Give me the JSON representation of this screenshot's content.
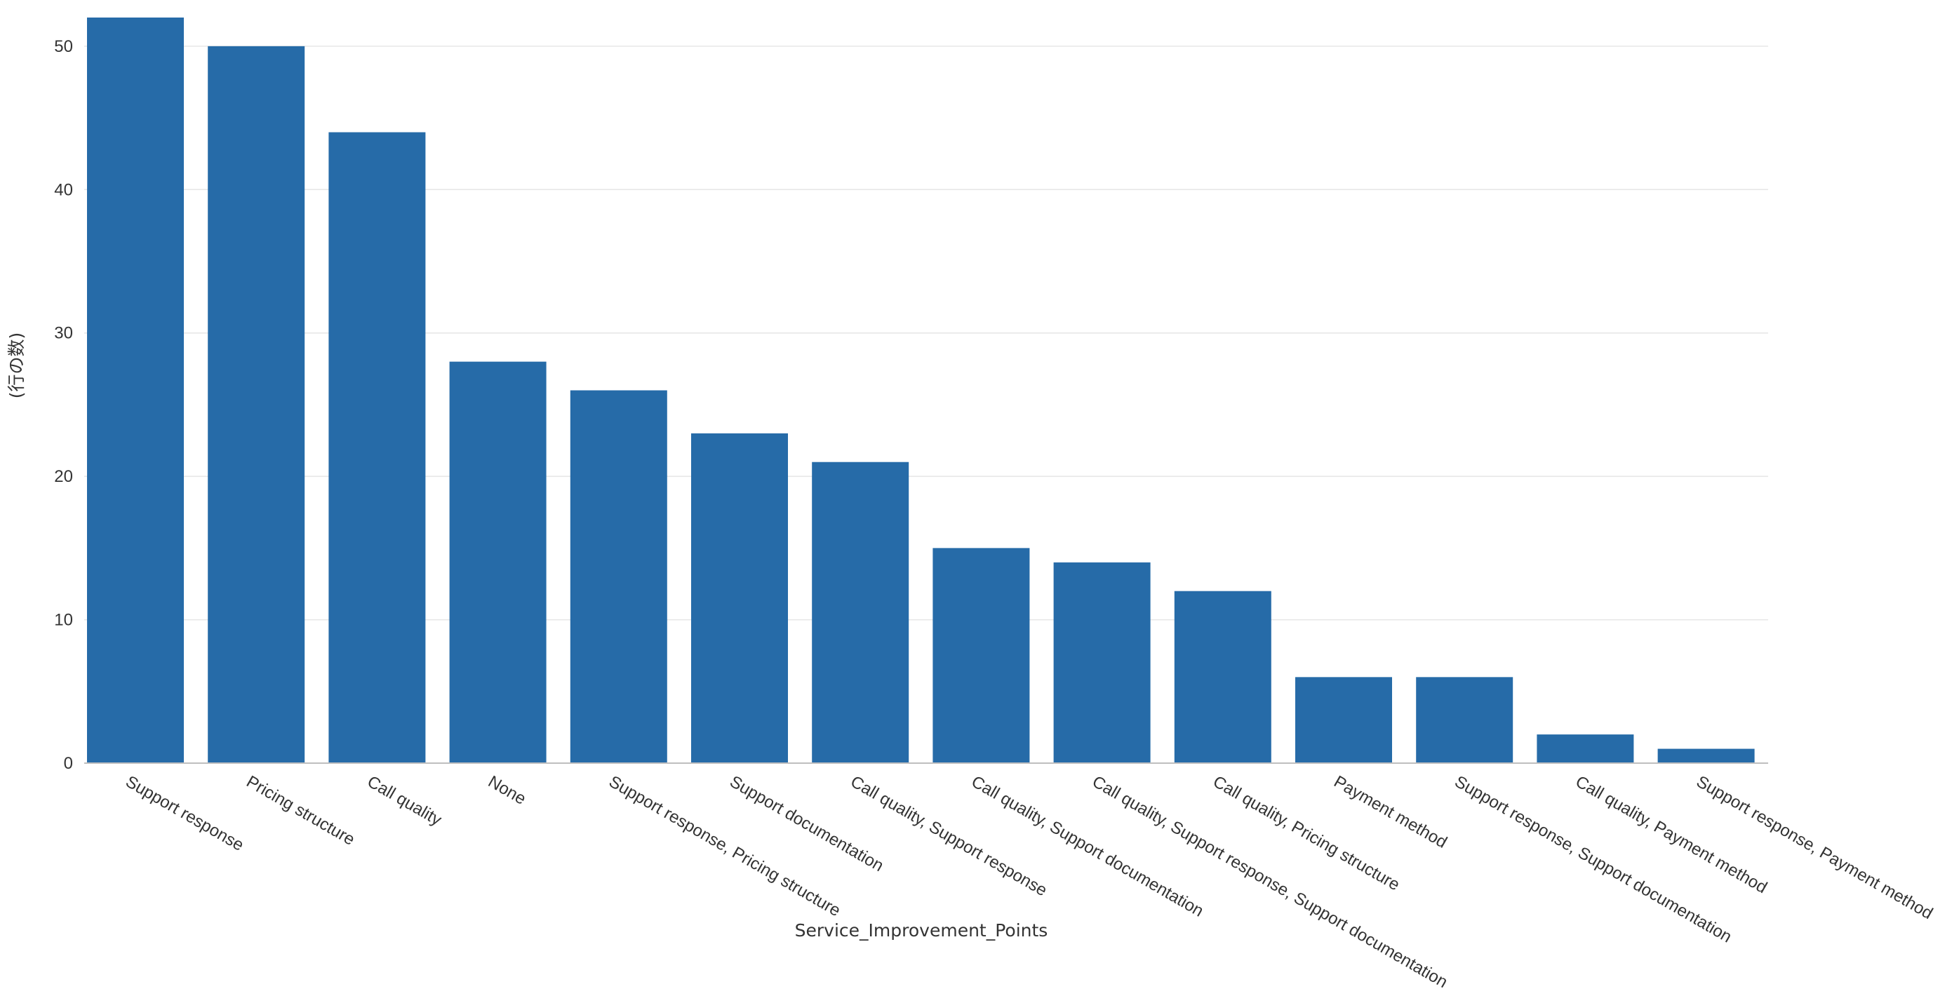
{
  "chart_data": {
    "type": "bar",
    "title": "",
    "xlabel": "Service_Improvement_Points",
    "ylabel": "(行の数)",
    "ylim": [
      0,
      52
    ],
    "yticks": [
      0,
      10,
      20,
      30,
      40,
      50
    ],
    "grid": true,
    "bar_color": "#266ba8",
    "categories": [
      "Support response",
      "Pricing structure",
      "Call quality",
      "None",
      "Support response, Pricing structure",
      "Support documentation",
      "Call quality, Support response",
      "Call quality, Support documentation",
      "Call quality, Support response, Support documentation",
      "Call quality, Pricing structure",
      "Payment method",
      "Support response, Support documentation",
      "Call quality, Payment method",
      "Support response, Payment method"
    ],
    "values": [
      52,
      50,
      44,
      28,
      26,
      23,
      21,
      15,
      14,
      12,
      6,
      6,
      2,
      1
    ]
  }
}
